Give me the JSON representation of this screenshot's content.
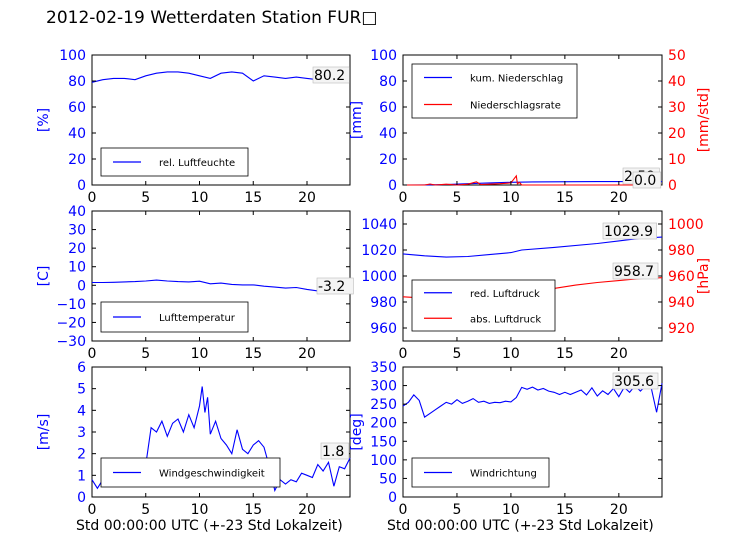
{
  "title": "2012-02-19 Wetterdaten Station FUR□",
  "colors": {
    "blue": "#0000ff",
    "red": "#ff0000"
  },
  "xlabel": "Std 00:00:00 UTC (+-23 Std Lokalzeit)",
  "chart_data": [
    {
      "type": "line",
      "panel": "top-left",
      "xlim": [
        0,
        24
      ],
      "ylim": [
        0,
        100
      ],
      "ylabel": "[%]",
      "xticks": [
        0,
        5,
        10,
        15,
        20
      ],
      "yticks": [
        0,
        20,
        40,
        60,
        80,
        100
      ],
      "legend_position": "lower-left",
      "annotation": "80.2",
      "series": [
        {
          "name": "rel. Luftfeuchte",
          "color": "#0000ff",
          "x": [
            0,
            1,
            2,
            3,
            4,
            5,
            6,
            7,
            8,
            9,
            10,
            11,
            12,
            13,
            14,
            15,
            16,
            17,
            18,
            19,
            20,
            21,
            22,
            23,
            24
          ],
          "y": [
            79,
            81,
            82,
            82,
            81,
            84,
            86,
            87,
            87,
            86,
            84,
            82,
            86,
            87,
            86,
            80,
            84,
            83,
            82,
            83,
            82,
            81,
            80,
            80,
            80
          ]
        }
      ]
    },
    {
      "type": "line",
      "panel": "top-right",
      "xlim": [
        0,
        24
      ],
      "ylim": [
        0,
        100
      ],
      "ylabel": "[mm]",
      "y2lim": [
        0,
        50
      ],
      "y2label": "[mm/std]",
      "xticks": [
        0,
        5,
        10,
        15,
        20
      ],
      "yticks": [
        0,
        20,
        40,
        60,
        80,
        100
      ],
      "y2ticks": [
        0,
        10,
        20,
        30,
        40,
        50
      ],
      "legend_position": "upper-left",
      "annotations": [
        "2.59",
        "0.0"
      ],
      "series": [
        {
          "name": "kum. Niederschlag",
          "color": "#0000ff",
          "axis": "left",
          "x": [
            0,
            2,
            4,
            6,
            8,
            10,
            12,
            14,
            16,
            18,
            20,
            22,
            24
          ],
          "y": [
            0,
            0.1,
            0.4,
            1.0,
            1.6,
            2.1,
            2.4,
            2.5,
            2.55,
            2.59,
            2.59,
            2.59,
            2.59
          ]
        },
        {
          "name": "Niederschlagsrate",
          "color": "#ff0000",
          "axis": "right",
          "x": [
            0,
            2,
            2.5,
            3,
            4,
            5,
            6,
            6.8,
            7.2,
            8,
            9,
            10,
            10.5,
            10.6,
            10.8,
            11,
            12,
            14,
            16,
            18,
            20,
            22,
            24
          ],
          "y": [
            0,
            0,
            0.4,
            0,
            0.3,
            0,
            0.3,
            1.2,
            0.2,
            0.3,
            0.5,
            0.8,
            3.5,
            0.5,
            1.0,
            0,
            0,
            0,
            0,
            0,
            0,
            0,
            0
          ]
        }
      ]
    },
    {
      "type": "line",
      "panel": "middle-left",
      "xlim": [
        0,
        24
      ],
      "ylim": [
        -30,
        40
      ],
      "ylabel": "[C]",
      "xticks": [
        0,
        5,
        10,
        15,
        20
      ],
      "yticks": [
        -30,
        -20,
        -10,
        0,
        10,
        20,
        30,
        40
      ],
      "legend_position": "lower-left",
      "annotation": "-3.2",
      "series": [
        {
          "name": "Lufttemperatur",
          "color": "#0000ff",
          "x": [
            0,
            1,
            2,
            3,
            4,
            5,
            6,
            7,
            8,
            9,
            10,
            11,
            12,
            13,
            14,
            15,
            16,
            17,
            18,
            19,
            20,
            21,
            22,
            23,
            24
          ],
          "y": [
            1.5,
            1.5,
            1.6,
            1.8,
            2.0,
            2.3,
            2.8,
            2.3,
            2.0,
            1.8,
            2.2,
            0.8,
            1.2,
            0.5,
            0.2,
            0.2,
            -0.5,
            -1.0,
            -1.5,
            -1.2,
            -2.2,
            -3.0,
            -2.0,
            -3.0,
            -3.2
          ]
        }
      ]
    },
    {
      "type": "line",
      "panel": "middle-right",
      "xlim": [
        0,
        24
      ],
      "ylim": [
        950,
        1050
      ],
      "ylabel": "",
      "y2lim": [
        910,
        1010
      ],
      "y2label": "[hPa]",
      "xticks": [
        0,
        5,
        10,
        15,
        20
      ],
      "yticks": [
        960,
        980,
        1000,
        1020,
        1040
      ],
      "y2ticks": [
        920,
        940,
        960,
        980,
        1000
      ],
      "legend_position": "lower-left",
      "annotations": [
        "1029.9",
        "958.7"
      ],
      "series": [
        {
          "name": "red. Luftdruck",
          "color": "#0000ff",
          "axis": "left",
          "x": [
            0,
            2,
            4,
            6,
            8,
            10,
            11,
            14,
            18,
            20,
            22,
            24
          ],
          "y": [
            1017,
            1015.5,
            1014.5,
            1015,
            1016.5,
            1018,
            1020,
            1022,
            1025,
            1027,
            1029,
            1029.9
          ]
        },
        {
          "name": "abs. Luftdruck",
          "color": "#ff0000",
          "axis": "right",
          "x": [
            0,
            2,
            4,
            6,
            8,
            10,
            12,
            14,
            16,
            18,
            20,
            22,
            24
          ],
          "y": [
            944,
            943,
            942.5,
            943,
            944.5,
            946.5,
            948.5,
            950.5,
            953,
            955,
            956.5,
            958,
            958.7
          ]
        }
      ]
    },
    {
      "type": "line",
      "panel": "bottom-left",
      "xlim": [
        0,
        24
      ],
      "ylim": [
        0,
        6
      ],
      "ylabel": "[m/s]",
      "xticks": [
        0,
        5,
        10,
        15,
        20
      ],
      "yticks": [
        0,
        1,
        2,
        3,
        4,
        5,
        6
      ],
      "legend_position": "lower-center",
      "annotation": "1.8",
      "series": [
        {
          "name": "Windgeschwindigkeit",
          "color": "#0000ff",
          "x": [
            0,
            0.5,
            1,
            1.5,
            2,
            2.5,
            3,
            3.5,
            4,
            4.5,
            5,
            5.5,
            6,
            6.5,
            7,
            7.5,
            8,
            8.5,
            9,
            9.5,
            10,
            10.25,
            10.5,
            10.75,
            11,
            11.5,
            12,
            12.5,
            13,
            13.5,
            14,
            14.5,
            15,
            15.5,
            16,
            16.5,
            17,
            17.5,
            18,
            18.5,
            19,
            19.5,
            20,
            20.5,
            21,
            21.5,
            22,
            22.5,
            23,
            23.5,
            24
          ],
          "y": [
            0.8,
            0.4,
            0.8,
            1.2,
            1.1,
            0.9,
            1.2,
            1.0,
            1.1,
            0.6,
            1.5,
            3.2,
            3.0,
            3.5,
            2.8,
            3.4,
            3.6,
            3.0,
            3.8,
            3.2,
            4.2,
            5.1,
            3.9,
            4.6,
            2.9,
            3.5,
            2.7,
            2.4,
            2.0,
            3.1,
            2.2,
            2.0,
            2.4,
            2.6,
            2.3,
            1.4,
            0.3,
            0.8,
            0.6,
            0.8,
            0.7,
            1.1,
            1.0,
            0.9,
            1.5,
            1.2,
            1.6,
            0.5,
            1.4,
            1.3,
            1.8
          ]
        }
      ]
    },
    {
      "type": "line",
      "panel": "bottom-right",
      "xlim": [
        0,
        24
      ],
      "ylim": [
        0,
        350
      ],
      "ylabel": "[deg]",
      "xticks": [
        0,
        5,
        10,
        15,
        20
      ],
      "yticks": [
        0,
        50,
        100,
        150,
        200,
        250,
        300,
        350
      ],
      "legend_position": "lower-left",
      "annotation": "305.6",
      "series": [
        {
          "name": "Windrichtung",
          "color": "#0000ff",
          "x": [
            0,
            0.5,
            1,
            1.5,
            2,
            2.5,
            3,
            3.5,
            4,
            4.5,
            5,
            5.5,
            6,
            6.5,
            7,
            7.5,
            8,
            8.5,
            9,
            9.5,
            10,
            10.5,
            11,
            11.5,
            12,
            12.5,
            13,
            13.5,
            14,
            14.5,
            15,
            15.5,
            16,
            16.5,
            17,
            17.5,
            18,
            18.5,
            19,
            19.5,
            20,
            20.5,
            21,
            21.5,
            22,
            22.5,
            23,
            23.5,
            24
          ],
          "y": [
            245,
            255,
            275,
            260,
            215,
            225,
            235,
            245,
            255,
            250,
            262,
            252,
            258,
            265,
            255,
            258,
            252,
            255,
            254,
            258,
            256,
            268,
            295,
            290,
            296,
            288,
            292,
            285,
            282,
            276,
            282,
            276,
            282,
            288,
            275,
            294,
            272,
            286,
            276,
            292,
            270,
            295,
            282,
            300,
            285,
            300,
            294,
            228,
            306
          ]
        }
      ]
    }
  ]
}
